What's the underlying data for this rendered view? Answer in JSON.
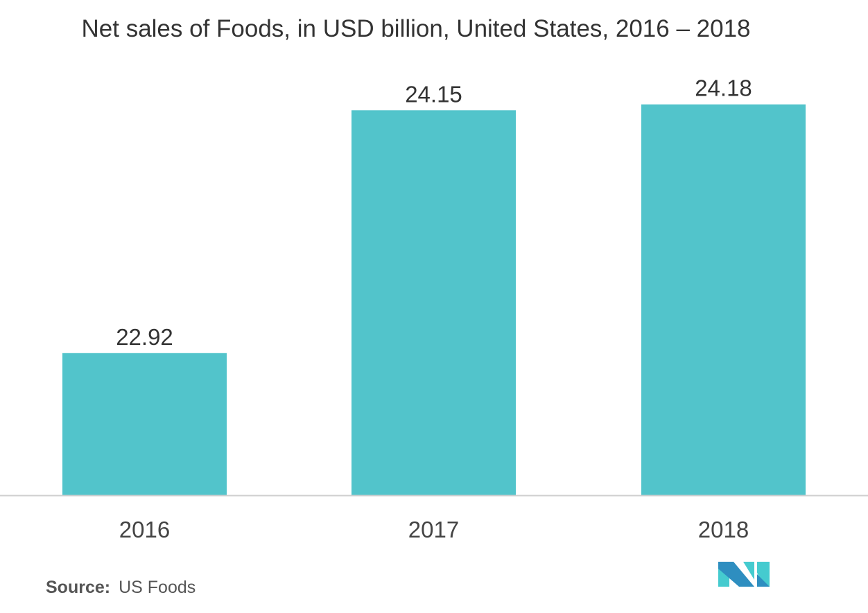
{
  "chart_data": {
    "type": "bar",
    "title": "Net sales of Foods, in USD billion, United States, 2016 – 2018",
    "categories": [
      "2016",
      "2017",
      "2018"
    ],
    "values": [
      22.92,
      24.15,
      24.18
    ],
    "value_labels": [
      "22.92",
      "24.15",
      "24.18"
    ],
    "xlabel": "",
    "ylabel": "",
    "ylim": [
      22.2,
      24.2
    ],
    "grid": false,
    "bar_color": "#52C4CB"
  },
  "source": {
    "label": "Source:",
    "value": "US Foods"
  },
  "logo": {
    "colors": [
      "#2E8EC0",
      "#45CBCF"
    ]
  }
}
